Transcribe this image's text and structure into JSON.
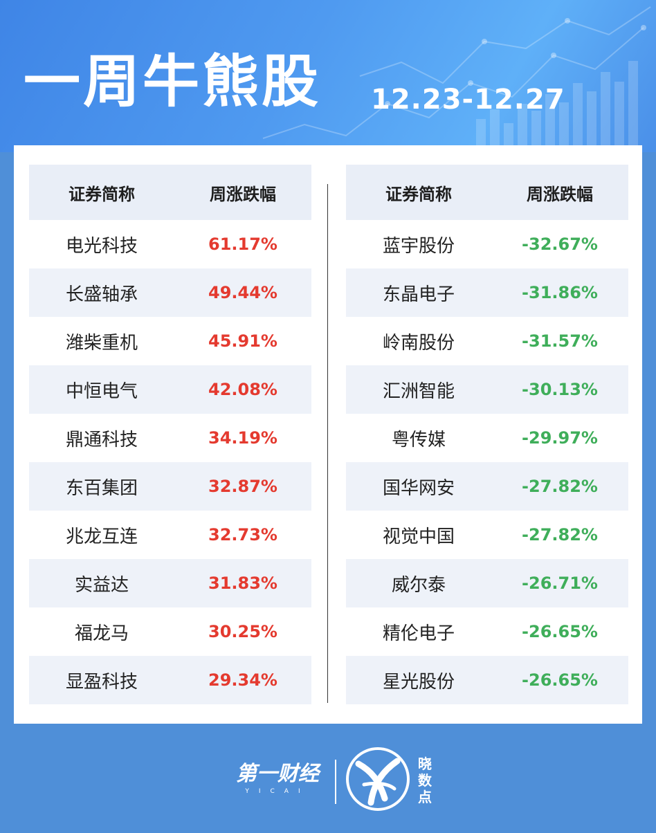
{
  "header": {
    "title": "一周牛熊股",
    "date_range": "12.23-12.27"
  },
  "columns": {
    "name": "证券简称",
    "change": "周涨跌幅"
  },
  "gainers": [
    {
      "name": "电光科技",
      "change": "61.17%"
    },
    {
      "name": "长盛轴承",
      "change": "49.44%"
    },
    {
      "name": "潍柴重机",
      "change": "45.91%"
    },
    {
      "name": "中恒电气",
      "change": "42.08%"
    },
    {
      "name": "鼎通科技",
      "change": "34.19%"
    },
    {
      "name": "东百集团",
      "change": "32.87%"
    },
    {
      "name": "兆龙互连",
      "change": "32.73%"
    },
    {
      "name": "实益达",
      "change": "31.83%"
    },
    {
      "name": "福龙马",
      "change": "30.25%"
    },
    {
      "name": "显盈科技",
      "change": "29.34%"
    }
  ],
  "losers": [
    {
      "name": "蓝宇股份",
      "change": "-32.67%"
    },
    {
      "name": "东晶电子",
      "change": "-31.86%"
    },
    {
      "name": "岭南股份",
      "change": "-31.57%"
    },
    {
      "name": "汇洲智能",
      "change": "-30.13%"
    },
    {
      "name": "粤传媒",
      "change": "-29.97%"
    },
    {
      "name": "国华网安",
      "change": "-27.82%"
    },
    {
      "name": "视觉中国",
      "change": "-27.82%"
    },
    {
      "name": "威尔泰",
      "change": "-26.71%"
    },
    {
      "name": "精伦电子",
      "change": "-26.65%"
    },
    {
      "name": "星光股份",
      "change": "-26.65%"
    }
  ],
  "footer": {
    "brand1": "第一财经",
    "brand1_sub": "YICAI",
    "brand2_chars": [
      "晓",
      "数",
      "点"
    ],
    "logo_icon": "xiaoshudian-logo-icon"
  },
  "colors": {
    "gain": "#e43a2f",
    "loss": "#3fae5a",
    "accent": "#4f8fd8",
    "header_bg": "#4f9af0",
    "table_header_bg": "#e9eef7"
  }
}
